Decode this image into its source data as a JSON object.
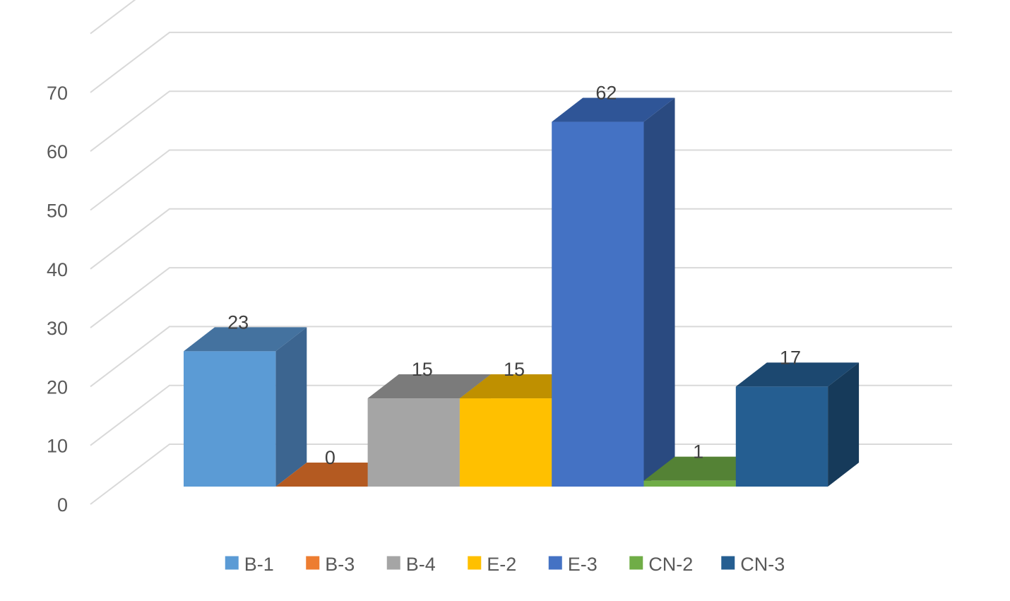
{
  "chart_data": {
    "type": "bar",
    "subtype": "3d-clustered-column",
    "categories": [
      "B-1",
      "B-3",
      "B-4",
      "E-2",
      "E-3",
      "CN-2",
      "CN-3"
    ],
    "series": [
      {
        "name": "B-1",
        "value": 23,
        "color": "#5B9BD5",
        "side_color": "#3C6590",
        "top_color": "#44729F"
      },
      {
        "name": "B-3",
        "value": 0,
        "color": "#ED7D31",
        "side_color": "#A0521D",
        "top_color": "#B45A21"
      },
      {
        "name": "B-4",
        "value": 15,
        "color": "#A5A5A5",
        "side_color": "#6E6E6E",
        "top_color": "#7B7B7B"
      },
      {
        "name": "E-2",
        "value": 15,
        "color": "#FFC000",
        "side_color": "#A57C00",
        "top_color": "#BF9000"
      },
      {
        "name": "E-3",
        "value": 62,
        "color": "#4472C4",
        "side_color": "#2A4A80",
        "top_color": "#2F5597"
      },
      {
        "name": "CN-2",
        "value": 1,
        "color": "#70AD47",
        "side_color": "#4A7430",
        "top_color": "#548235"
      },
      {
        "name": "CN-3",
        "value": 17,
        "color": "#255E91",
        "side_color": "#163A5A",
        "top_color": "#1C4870"
      }
    ],
    "y_ticks": [
      "0",
      "10",
      "20",
      "30",
      "40",
      "50",
      "60",
      "70"
    ],
    "ylim": [
      0,
      80
    ],
    "data_labels": [
      "23",
      "0",
      "15",
      "15",
      "62",
      "1",
      "17"
    ],
    "legend_position": "bottom",
    "grid": true
  }
}
